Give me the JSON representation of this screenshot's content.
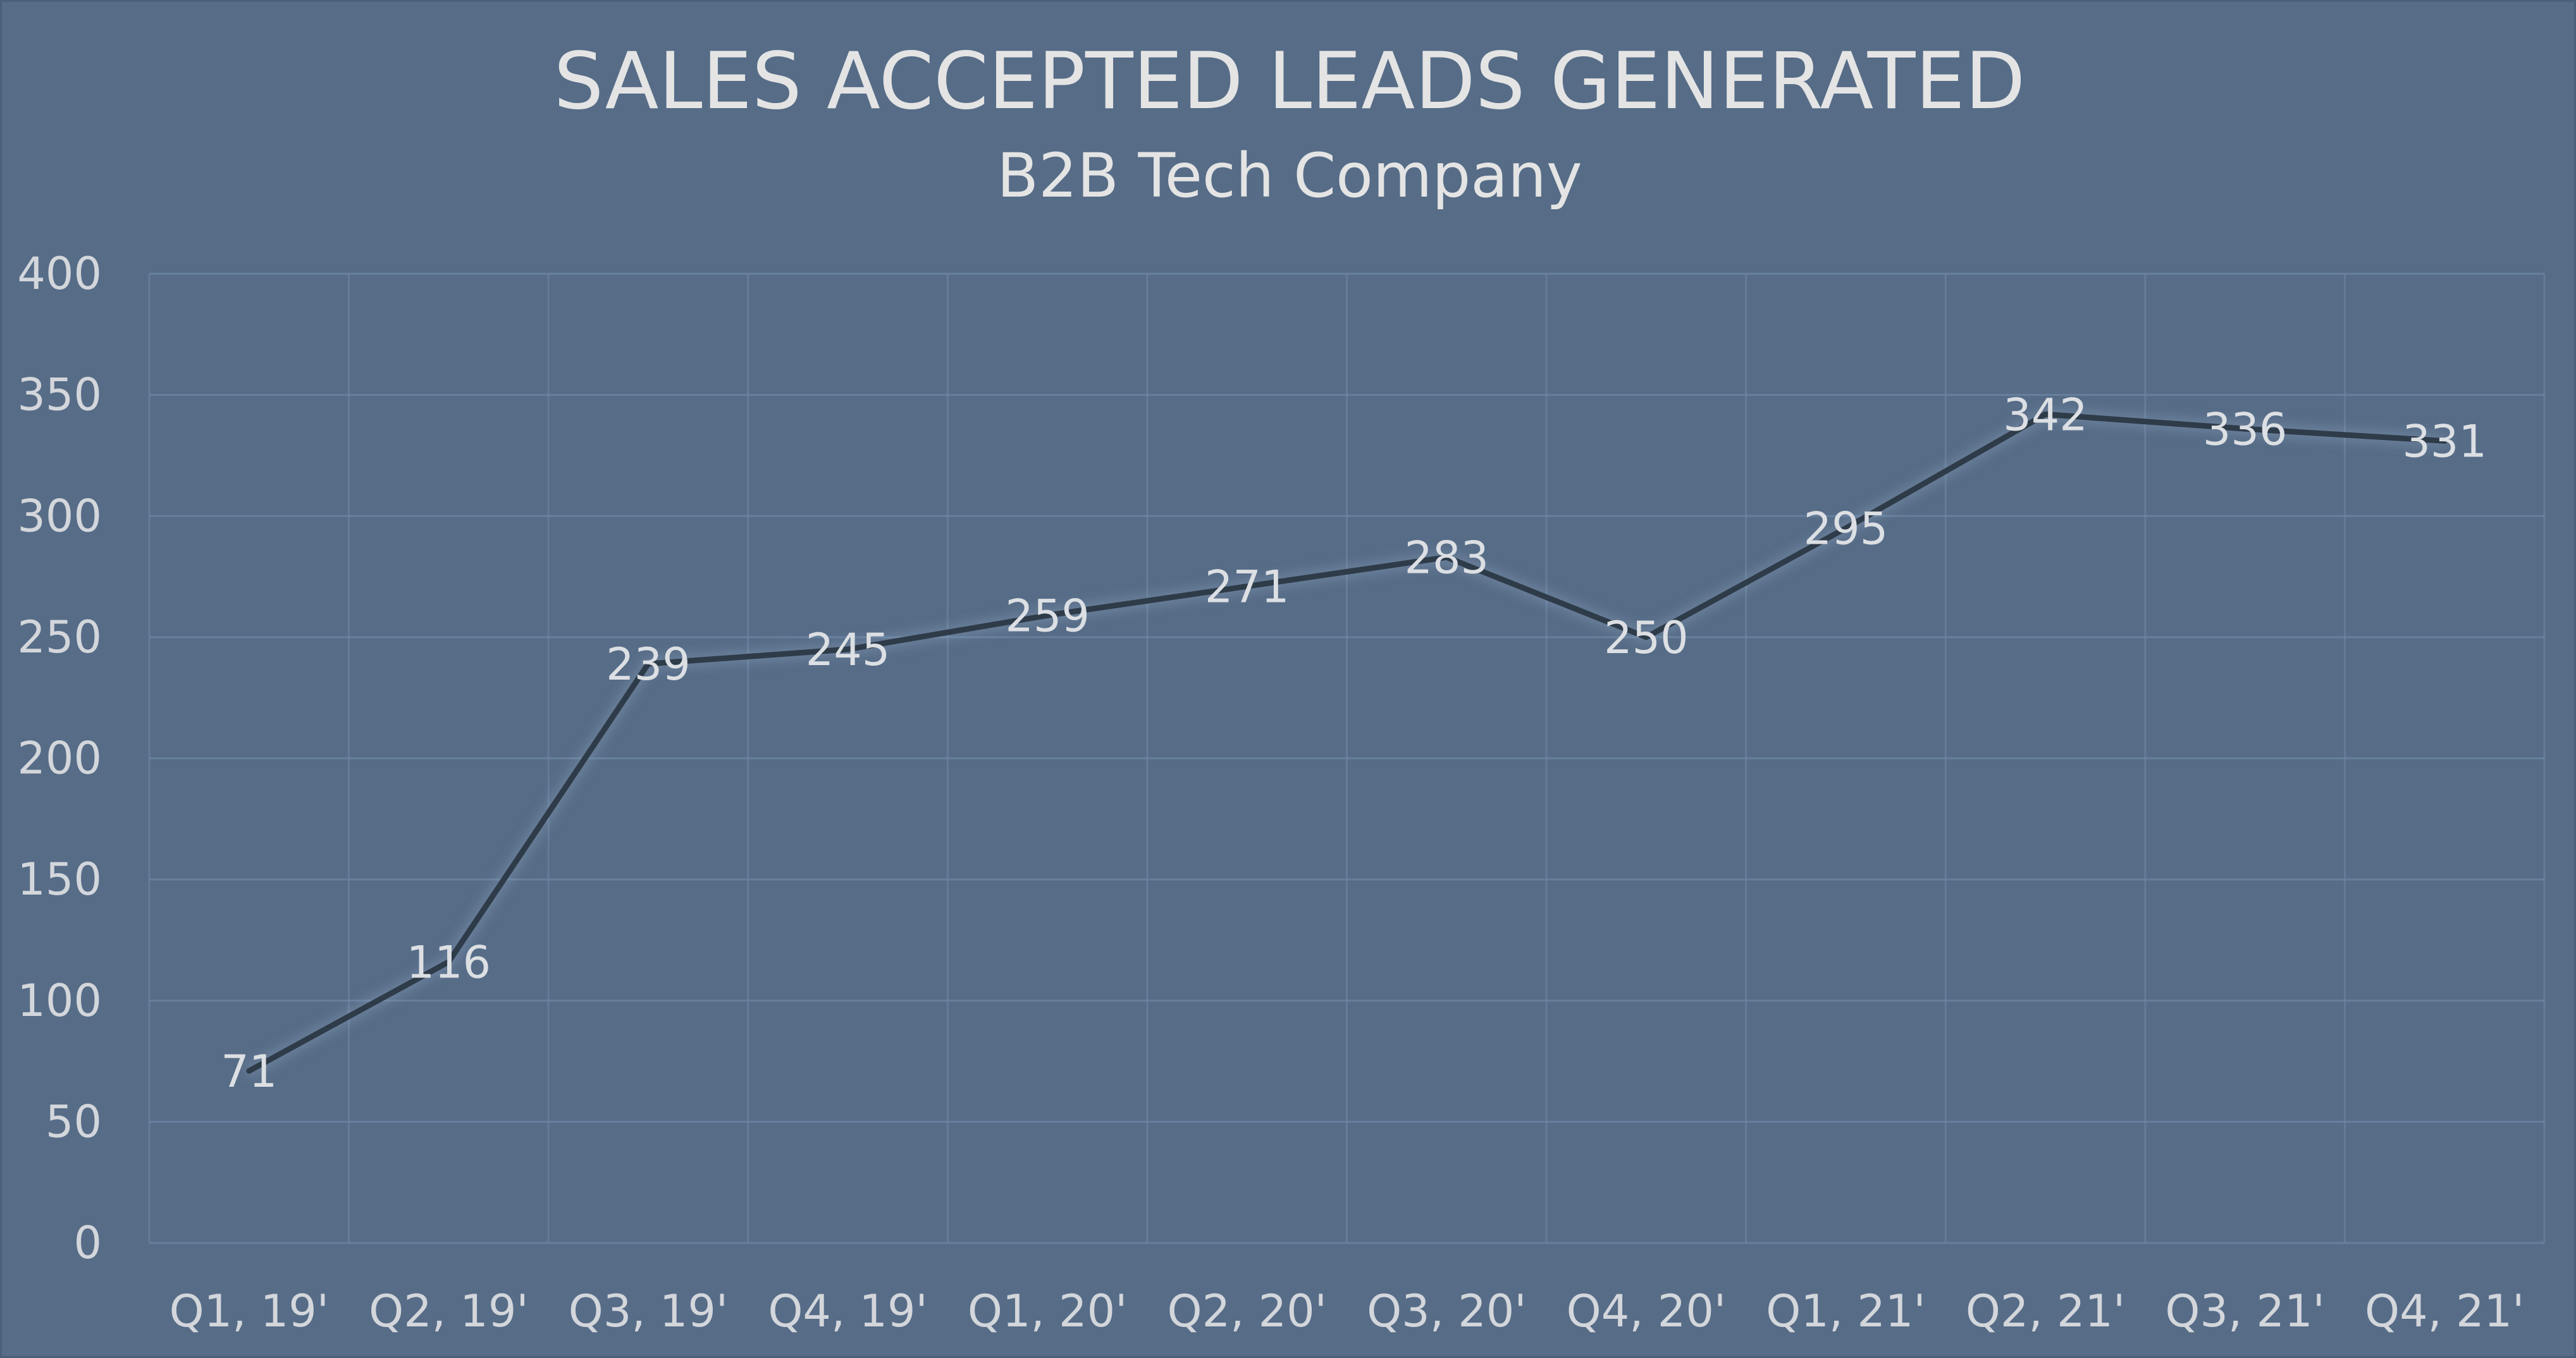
{
  "chart_data": {
    "type": "line",
    "title": "SALES ACCEPTED LEADS GENERATED",
    "subtitle": "B2B Tech Company",
    "xlabel": "",
    "ylabel": "",
    "categories": [
      "Q1, 19'",
      "Q2, 19'",
      "Q3, 19'",
      "Q4, 19'",
      "Q1, 20'",
      "Q2, 20'",
      "Q3, 20'",
      "Q4, 20'",
      "Q1, 21'",
      "Q2, 21'",
      "Q3, 21'",
      "Q4, 21'"
    ],
    "series": [
      {
        "values": [
          71,
          116,
          239,
          245,
          259,
          271,
          283,
          250,
          295,
          342,
          336,
          331
        ],
        "data_labels": [
          "71",
          "116",
          "239",
          "245",
          "259",
          "271",
          "283",
          "250",
          "295",
          "342",
          "336",
          "331"
        ]
      }
    ],
    "ylim": [
      0,
      400
    ],
    "yticks": [
      "0",
      "50",
      "100",
      "150",
      "200",
      "250",
      "300",
      "350",
      "400"
    ],
    "grid": true,
    "legend": "none",
    "colors": {
      "background": "#566c87",
      "gridline": "#6b84a0",
      "line": "#2f3a48",
      "text": "#dcdfe3"
    }
  }
}
